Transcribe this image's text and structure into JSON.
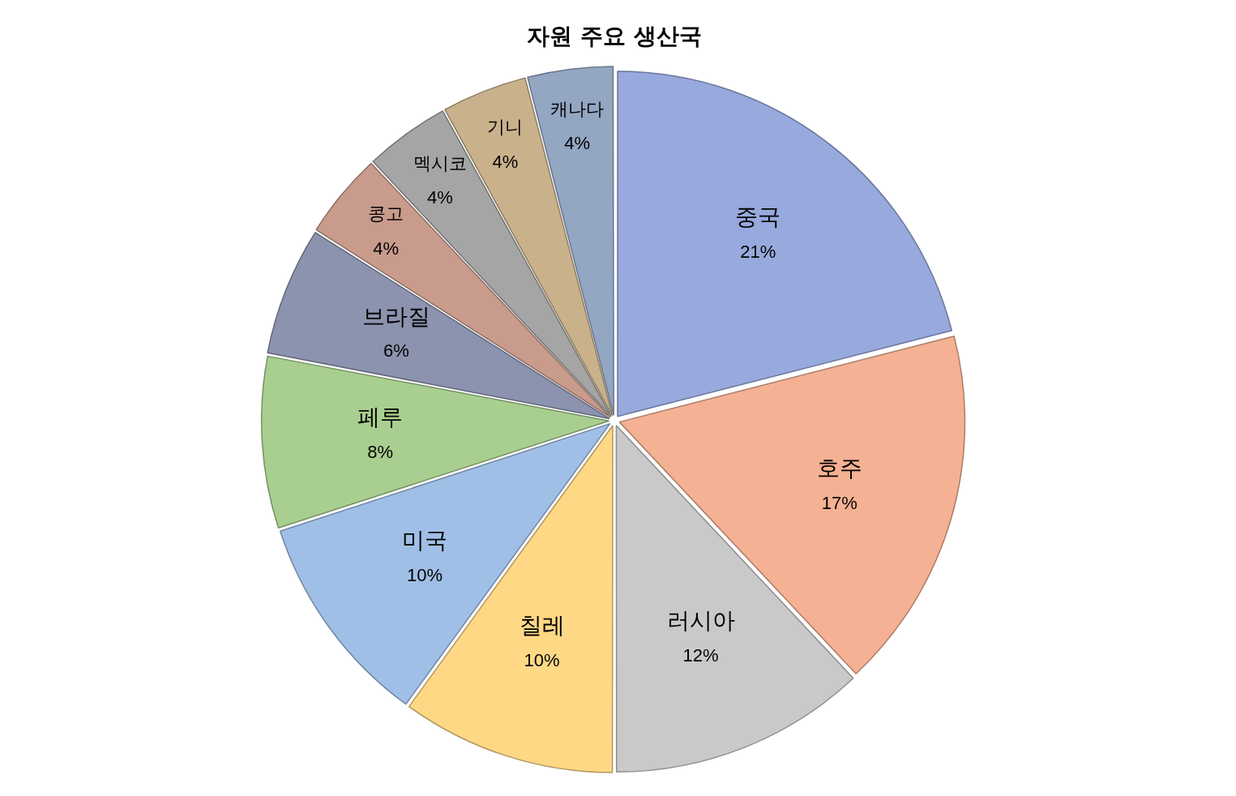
{
  "chart_data": {
    "type": "pie",
    "title": "자원 주요 생산국",
    "categories": [
      "중국",
      "호주",
      "러시아",
      "칠레",
      "미국",
      "페루",
      "브라질",
      "콩고",
      "멕시코",
      "기니",
      "캐나다"
    ],
    "values": [
      21,
      17,
      12,
      10,
      10,
      8,
      6,
      4,
      4,
      4,
      4
    ],
    "value_labels": [
      "21%",
      "17%",
      "12%",
      "10%",
      "10%",
      "8%",
      "6%",
      "4%",
      "4%",
      "4%",
      "4%"
    ],
    "colors": [
      "#97a9dd",
      "#f5b193",
      "#c9c9c9",
      "#ffd886",
      "#a0bfe6",
      "#a9cf90",
      "#8c93ae",
      "#c99b8d",
      "#a5a5a5",
      "#c9b18b",
      "#93a6c2"
    ],
    "legend": false
  }
}
